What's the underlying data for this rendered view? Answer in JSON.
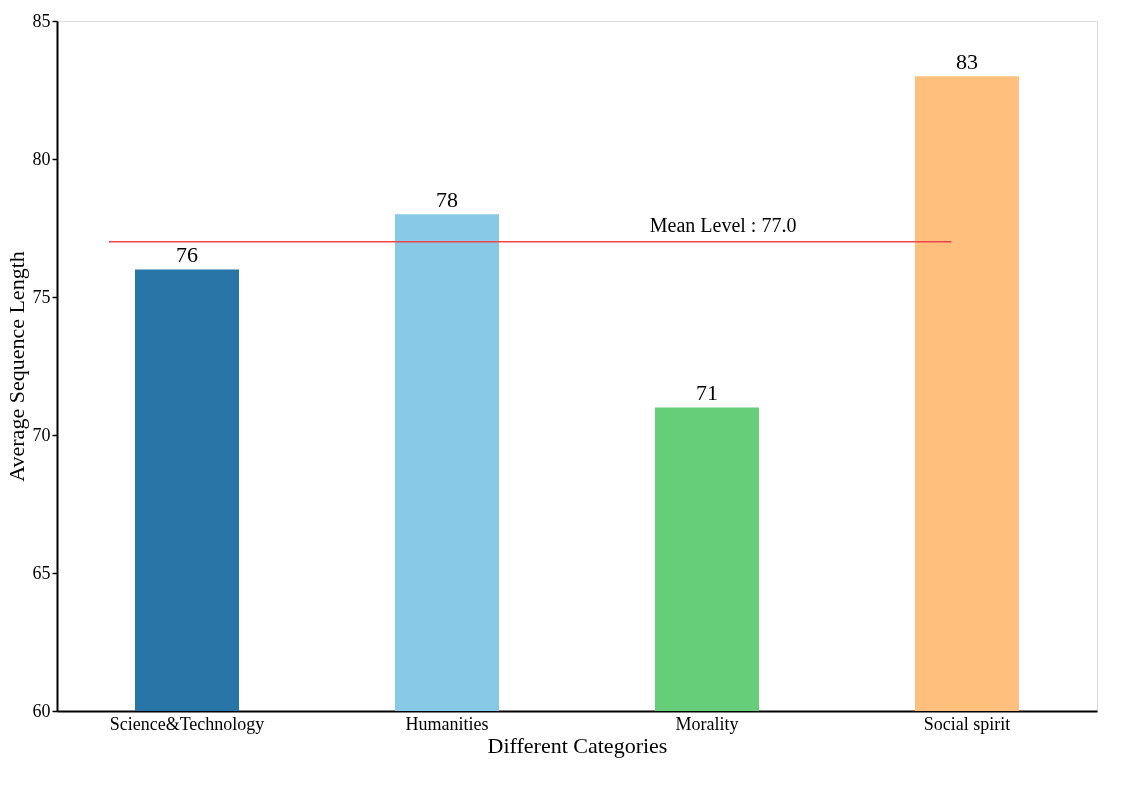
{
  "chart_data": {
    "type": "bar",
    "xlabel": "Different Categories",
    "ylabel": "Average Sequence Length",
    "categories": [
      "Science&Technology",
      "Humanities",
      "Morality",
      "Social spirit"
    ],
    "values": [
      76,
      78,
      71,
      83
    ],
    "colors": [
      "#2776a7",
      "#87c9e6",
      "#66cd79",
      "#ffbf7d"
    ],
    "ylim": [
      60,
      85
    ],
    "yticks": [
      60,
      65,
      70,
      75,
      80,
      85
    ],
    "data_labels": true,
    "grid": false,
    "ref_lines": [
      {
        "axis": "y",
        "value": 77.0,
        "label": "Mean Level :   77.0",
        "color": "#f0454b"
      }
    ]
  }
}
